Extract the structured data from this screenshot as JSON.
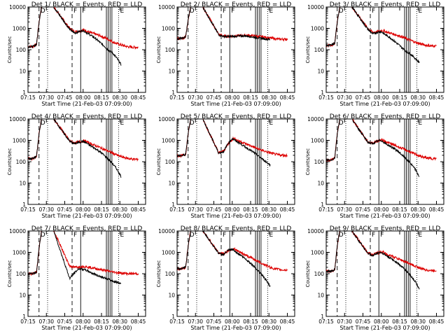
{
  "chart_data": [
    {
      "type": "line",
      "detector": 1,
      "title": "Det 1/ BLACK = Events, RED = LLD",
      "xlabel": "Start Time (21-Feb-03 07:09:00)",
      "ylabel": "Counts/sec",
      "xticks": [
        "07:15",
        "07:30",
        "07:45",
        "08:00",
        "08:15",
        "08:30",
        "08:45"
      ],
      "yticks": [
        "1",
        "10",
        "100",
        "1000",
        "10000"
      ],
      "yscale": "log",
      "xlim_min": [
        6,
        102
      ],
      "ylim": [
        1,
        10000
      ],
      "series": [
        {
          "name": "Events",
          "color": "#000000",
          "level": [
            140,
            140,
            180,
            2000,
            10000,
            10000,
            900,
            600,
            700,
            800,
            600,
            450,
            330,
            220,
            150,
            95,
            70,
            40,
            20
          ]
        },
        {
          "name": "LLD",
          "color": "#dd0000",
          "level": [
            140,
            140,
            180,
            2000,
            10000,
            10000,
            1000,
            700,
            750,
            850,
            650,
            560,
            470,
            380,
            290,
            220,
            180,
            155,
            135,
            130,
            130
          ]
        }
      ]
    },
    {
      "type": "line",
      "detector": 2,
      "title": "Det 2/ BLACK = Events, RED = LLD",
      "xlabel": "Start Time (21-Feb-03 07:09:00)",
      "ylabel": "Counts/sec",
      "xticks": [
        "07:15",
        "07:30",
        "07:45",
        "08:00",
        "08:15",
        "08:30",
        "08:45"
      ],
      "yticks": [
        "1",
        "10",
        "100",
        "1000",
        "10000"
      ],
      "yscale": "log",
      "xlim_min": [
        6,
        102
      ],
      "ylim": [
        1,
        10000
      ],
      "series": [
        {
          "name": "Events",
          "color": "#000000",
          "level": [
            330,
            340,
            400,
            2500,
            10000,
            10000,
            500,
            420,
            410,
            420,
            430,
            450,
            420,
            380,
            350,
            320,
            300
          ]
        },
        {
          "name": "LLD",
          "color": "#dd0000",
          "level": [
            330,
            340,
            400,
            2500,
            10000,
            10000,
            520,
            430,
            420,
            440,
            460,
            480,
            450,
            420,
            390,
            350,
            320,
            310,
            310
          ]
        }
      ]
    },
    {
      "type": "line",
      "detector": 3,
      "title": "Det 3/ BLACK = Events, RED = LLD",
      "xlabel": "Start Time (21-Feb-03 07:09:00)",
      "ylabel": "Counts/sec",
      "xticks": [
        "07:15",
        "07:30",
        "07:45",
        "08:00",
        "08:15",
        "08:30",
        "08:45"
      ],
      "yticks": [
        "1",
        "10",
        "100",
        "1000",
        "10000"
      ],
      "yscale": "log",
      "xlim_min": [
        6,
        102
      ],
      "ylim": [
        1,
        10000
      ],
      "series": [
        {
          "name": "Events",
          "color": "#000000",
          "level": [
            160,
            160,
            200,
            2000,
            10000,
            10000,
            900,
            550,
            650,
            700,
            500,
            380,
            260,
            180,
            120,
            80,
            60,
            40,
            25
          ]
        },
        {
          "name": "LLD",
          "color": "#dd0000",
          "level": [
            160,
            160,
            200,
            2000,
            10000,
            10000,
            1000,
            650,
            700,
            800,
            650,
            560,
            480,
            400,
            320,
            260,
            210,
            180,
            160,
            150,
            150
          ]
        }
      ]
    },
    {
      "type": "line",
      "detector": 4,
      "title": "Det 4/ BLACK = Events, RED = LLD",
      "xlabel": "Start Time (21-Feb-03 07:09:00)",
      "ylabel": "Counts/sec",
      "xticks": [
        "07:15",
        "07:30",
        "07:45",
        "08:00",
        "08:15",
        "08:30",
        "08:45"
      ],
      "yticks": [
        "1",
        "10",
        "100",
        "1000",
        "10000"
      ],
      "yscale": "log",
      "xlim_min": [
        6,
        102
      ],
      "ylim": [
        1,
        10000
      ],
      "series": [
        {
          "name": "Events",
          "color": "#000000",
          "level": [
            140,
            140,
            180,
            2000,
            10000,
            10000,
            900,
            700,
            800,
            900,
            700,
            520,
            400,
            290,
            200,
            130,
            80,
            45,
            20
          ]
        },
        {
          "name": "LLD",
          "color": "#dd0000",
          "level": [
            140,
            140,
            180,
            2000,
            10000,
            10000,
            950,
            750,
            850,
            950,
            750,
            600,
            480,
            380,
            300,
            240,
            190,
            160,
            140,
            130,
            130
          ]
        }
      ]
    },
    {
      "type": "line",
      "detector": 5,
      "title": "Det 5/ BLACK = Events, RED = LLD",
      "xlabel": "Start Time (21-Feb-03 07:09:00)",
      "ylabel": "Counts/sec",
      "xticks": [
        "07:15",
        "07:30",
        "07:45",
        "08:00",
        "08:15",
        "08:30",
        "08:45"
      ],
      "yticks": [
        "1",
        "10",
        "100",
        "1000",
        "10000"
      ],
      "yscale": "log",
      "xlim_min": [
        6,
        102
      ],
      "ylim": [
        1,
        10000
      ],
      "series": [
        {
          "name": "Events",
          "color": "#000000",
          "level": [
            190,
            190,
            220,
            2000,
            10000,
            10000,
            250,
            300,
            700,
            1200,
            900,
            700,
            500,
            380,
            280,
            200,
            140,
            100,
            70
          ]
        },
        {
          "name": "LLD",
          "color": "#dd0000",
          "level": [
            190,
            190,
            220,
            2000,
            10000,
            10000,
            260,
            320,
            720,
            1250,
            950,
            780,
            620,
            500,
            400,
            330,
            280,
            240,
            210,
            200,
            200
          ]
        }
      ]
    },
    {
      "type": "line",
      "detector": 6,
      "title": "Det 6/ BLACK = Events, RED = LLD",
      "xlabel": "Start Time (21-Feb-03 07:09:00)",
      "ylabel": "Counts/sec",
      "xticks": [
        "07:15",
        "07:30",
        "07:45",
        "08:00",
        "08:15",
        "08:30",
        "08:45"
      ],
      "yticks": [
        "1",
        "10",
        "100",
        "1000",
        "10000"
      ],
      "yscale": "log",
      "xlim_min": [
        6,
        102
      ],
      "ylim": [
        1,
        10000
      ],
      "series": [
        {
          "name": "Events",
          "color": "#000000",
          "level": [
            120,
            120,
            150,
            2000,
            10000,
            10000,
            800,
            700,
            900,
            1000,
            700,
            550,
            420,
            300,
            200,
            130,
            80,
            45,
            20
          ]
        },
        {
          "name": "LLD",
          "color": "#dd0000",
          "level": [
            120,
            120,
            150,
            2000,
            10000,
            10000,
            850,
            750,
            950,
            1050,
            800,
            650,
            520,
            420,
            330,
            260,
            210,
            170,
            150,
            140,
            140
          ]
        }
      ]
    },
    {
      "type": "line",
      "detector": 7,
      "title": "Det 7/ BLACK = Events, RED = LLD",
      "xlabel": "Start Time (21-Feb-03 07:09:00)",
      "ylabel": "Counts/sec",
      "xticks": [
        "07:15",
        "07:30",
        "07:45",
        "08:00",
        "08:15",
        "08:30",
        "08:45"
      ],
      "yticks": [
        "1",
        "10",
        "100",
        "1000",
        "10000"
      ],
      "yscale": "log",
      "xlim_min": [
        6,
        102
      ],
      "ylim": [
        1,
        10000
      ],
      "series": [
        {
          "name": "Events",
          "color": "#000000",
          "level": [
            100,
            100,
            120,
            1500,
            10000,
            10000,
            60,
            110,
            170,
            160,
            140,
            110,
            90,
            75,
            65,
            55,
            45,
            40,
            35
          ]
        },
        {
          "name": "LLD",
          "color": "#dd0000",
          "level": [
            100,
            100,
            120,
            1500,
            10000,
            10000,
            230,
            200,
            210,
            220,
            200,
            180,
            160,
            145,
            130,
            120,
            110,
            105,
            100,
            100,
            100
          ]
        }
      ]
    },
    {
      "type": "line",
      "detector": 8,
      "title": "Det 8/ BLACK = Events, RED = LLD",
      "xlabel": "Start Time (21-Feb-03 07:09:00)",
      "ylabel": "Counts/sec",
      "xticks": [
        "07:15",
        "07:30",
        "07:45",
        "08:00",
        "08:15",
        "08:30",
        "08:45"
      ],
      "yticks": [
        "1",
        "10",
        "100",
        "1000",
        "10000"
      ],
      "yscale": "log",
      "xlim_min": [
        6,
        102
      ],
      "ylim": [
        1,
        10000
      ],
      "series": [
        {
          "name": "Events",
          "color": "#000000",
          "level": [
            170,
            170,
            200,
            2000,
            10000,
            10000,
            900,
            800,
            1200,
            1400,
            1000,
            750,
            520,
            360,
            240,
            150,
            90,
            50,
            25
          ]
        },
        {
          "name": "LLD",
          "color": "#dd0000",
          "level": [
            170,
            170,
            200,
            2000,
            10000,
            10000,
            950,
            850,
            1250,
            1500,
            1100,
            850,
            650,
            500,
            380,
            290,
            220,
            180,
            160,
            150,
            150
          ]
        }
      ]
    },
    {
      "type": "line",
      "detector": 9,
      "title": "Det 9/ BLACK = Events, RED = LLD",
      "xlabel": "Start Time (21-Feb-03 07:09:00)",
      "ylabel": "Counts/sec",
      "xticks": [
        "07:15",
        "07:30",
        "07:45",
        "08:00",
        "08:15",
        "08:30",
        "08:45"
      ],
      "yticks": [
        "1",
        "10",
        "100",
        "1000",
        "10000"
      ],
      "yscale": "log",
      "xlim_min": [
        6,
        102
      ],
      "ylim": [
        1,
        10000
      ],
      "series": [
        {
          "name": "Events",
          "color": "#000000",
          "level": [
            130,
            130,
            160,
            2000,
            10000,
            10000,
            900,
            700,
            900,
            1000,
            750,
            550,
            420,
            300,
            200,
            130,
            80,
            45,
            20
          ]
        },
        {
          "name": "LLD",
          "color": "#dd0000",
          "level": [
            130,
            130,
            160,
            2000,
            10000,
            10000,
            950,
            750,
            950,
            1050,
            800,
            650,
            520,
            420,
            330,
            260,
            210,
            170,
            150,
            140,
            140
          ]
        }
      ]
    }
  ],
  "markers": [
    {
      "label": "D",
      "minute": 15,
      "style": "dashed"
    },
    {
      "label": "F",
      "minute": 42,
      "style": "dashed"
    },
    {
      "label": "F",
      "minute": 49,
      "style": "solid"
    },
    {
      "label": "",
      "minute": 70,
      "style": "solid"
    },
    {
      "label": "",
      "minute": 71.5,
      "style": "solid"
    },
    {
      "label": "",
      "minute": 73,
      "style": "solid"
    },
    {
      "label": "",
      "minute": 74.5,
      "style": "solid"
    },
    {
      "label": "E",
      "minute": 80,
      "style": "dotted"
    },
    {
      "label": "",
      "minute": 22,
      "style": "dotted"
    }
  ]
}
